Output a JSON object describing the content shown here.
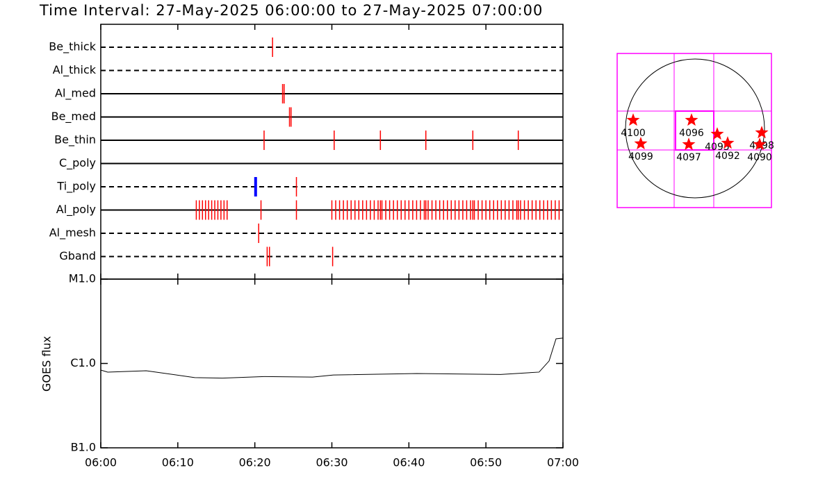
{
  "chart_data": [
    {
      "type": "timeline",
      "title": "Time Interval: 27-May-2025 06:00:00 to 27-May-2025 07:00:00",
      "xlim": [
        0,
        60
      ],
      "color": "#ff0000",
      "rows": [
        {
          "name": "Be_thick",
          "line": "dashed",
          "x": [
            22.3
          ]
        },
        {
          "name": "Al_thick",
          "line": "dashed",
          "x": []
        },
        {
          "name": "Al_med",
          "line": "solid",
          "x": [
            23.6,
            23.8
          ]
        },
        {
          "name": "Be_med",
          "line": "solid",
          "x": [
            24.5,
            24.7
          ]
        },
        {
          "name": "Be_thin",
          "line": "solid",
          "x": [
            21.2,
            30.3,
            36.3,
            42.2,
            48.3,
            54.2
          ]
        },
        {
          "name": "C_poly",
          "line": "solid",
          "x": []
        },
        {
          "name": "Ti_poly",
          "line": "dashed",
          "x": [
            25.4
          ],
          "highlight": [
            20.1
          ],
          "highlight_color": "#0000ff"
        },
        {
          "name": "Al_poly",
          "line": "solid",
          "x": [
            12.4,
            12.8,
            13.2,
            13.6,
            14.0,
            14.4,
            14.8,
            15.2,
            15.6,
            16.0,
            16.4,
            20.8,
            25.4,
            30,
            30.5,
            31,
            31.5,
            32,
            32.5,
            33,
            33.5,
            34,
            34.5,
            35,
            35.5,
            36,
            36.3,
            36.5,
            37,
            37.5,
            38,
            38.5,
            39,
            39.5,
            40,
            40.5,
            41,
            41.5,
            42,
            42.2,
            42.5,
            43,
            43.5,
            44,
            44.5,
            45,
            45.5,
            46,
            46.5,
            47,
            47.5,
            48,
            48.3,
            48.5,
            49,
            49.5,
            50,
            50.5,
            51,
            51.5,
            52,
            52.5,
            53,
            53.5,
            54,
            54.2,
            54.5,
            55,
            55.5,
            56,
            56.5,
            57,
            57.5,
            58,
            58.5,
            59,
            59.5
          ]
        },
        {
          "name": "Al_mesh",
          "line": "dashed",
          "x": [
            20.5
          ]
        },
        {
          "name": "Gband",
          "line": "dashed",
          "x": [
            21.6,
            21.9,
            30.1
          ]
        }
      ]
    },
    {
      "type": "line",
      "ylabel": "GOES flux",
      "x": [
        0,
        0.9,
        5.9,
        12.2,
        15.8,
        21.2,
        27.5,
        30.2,
        41,
        51.9,
        56.9,
        58.2,
        59.1,
        60
      ],
      "values": [
        8.35e-07,
        7.9e-07,
        8.2e-07,
        6.8e-07,
        6.7e-07,
        7e-07,
        6.9e-07,
        7.3e-07,
        7.6e-07,
        7.4e-07,
        7.9e-07,
        1.07e-06,
        1.96e-06,
        2e-06
      ],
      "color": "#000000",
      "xlim": [
        0,
        60
      ],
      "xticks": [
        {
          "value": 0,
          "label": "06:00"
        },
        {
          "value": 10,
          "label": "06:10"
        },
        {
          "value": 20,
          "label": "06:20"
        },
        {
          "value": 30,
          "label": "06:30"
        },
        {
          "value": 40,
          "label": "06:40"
        },
        {
          "value": 50,
          "label": "06:50"
        },
        {
          "value": 60,
          "label": "07:00"
        }
      ],
      "ylim": [
        1e-07,
        1e-05
      ],
      "log_scale": true,
      "yticks": [
        {
          "value": 1e-07,
          "label": "B1.0"
        },
        {
          "value": 1e-06,
          "label": "C1.0"
        },
        {
          "value": 1e-05,
          "label": "M1.0"
        }
      ]
    },
    {
      "type": "map",
      "color": "#ff0000",
      "xlim": [
        -1075,
        1056
      ],
      "ylim": [
        -1094,
        1037
      ],
      "points": [
        {
          "label": "4100",
          "x": -854,
          "y": 115
        },
        {
          "label": "4099",
          "x": -749,
          "y": -211
        },
        {
          "label": "4096",
          "x": -48,
          "y": 115
        },
        {
          "label": "4097",
          "x": -86,
          "y": -221
        },
        {
          "label": "4095",
          "x": 307,
          "y": -77
        },
        {
          "label": "4092",
          "x": 451,
          "y": -202
        },
        {
          "label": "4098",
          "x": 922,
          "y": -58
        },
        {
          "label": "4090",
          "x": 893,
          "y": -221
        }
      ]
    }
  ]
}
